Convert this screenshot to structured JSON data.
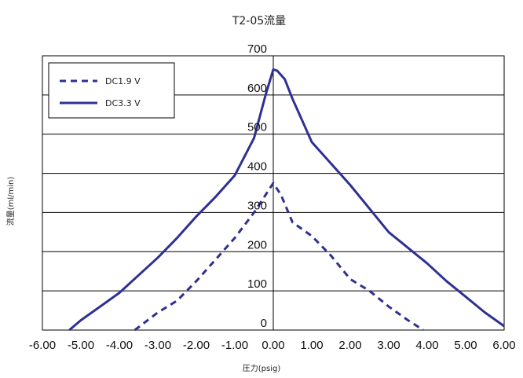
{
  "chart_data": {
    "type": "line",
    "title": "T2-05流量",
    "xlabel": "圧力(psig)",
    "ylabel": "流量(ml/min)",
    "xlim": [
      -6,
      6
    ],
    "ylim": [
      0,
      700
    ],
    "x_ticks": [
      "-6.00",
      "-5.00",
      "-4.00",
      "-3.00",
      "-2.00",
      "-1.00",
      "0.00",
      "1.00",
      "2.00",
      "3.00",
      "4.00",
      "5.00",
      "6.00"
    ],
    "y_ticks": [
      "0",
      "100",
      "200",
      "300",
      "400",
      "500",
      "600",
      "700"
    ],
    "grid": "horizontal",
    "legend_position": "top-left",
    "series": [
      {
        "name": "DC1.9 V",
        "style": "dashed",
        "color": "#2e3192",
        "x": [
          -3.6,
          -3.0,
          -2.5,
          -2.0,
          -1.5,
          -1.0,
          -0.5,
          -0.2,
          0.0,
          0.2,
          0.5,
          1.0,
          1.5,
          2.0,
          2.5,
          3.0,
          3.5,
          3.9
        ],
        "y": [
          0,
          45,
          75,
          125,
          180,
          235,
          300,
          345,
          375,
          345,
          275,
          240,
          190,
          130,
          100,
          60,
          25,
          0
        ]
      },
      {
        "name": "DC3.3 V",
        "style": "solid",
        "color": "#2e3192",
        "x": [
          -5.3,
          -5.0,
          -4.5,
          -4.0,
          -3.5,
          -3.0,
          -2.5,
          -2.0,
          -1.5,
          -1.0,
          -0.5,
          -0.2,
          0.0,
          0.1,
          0.3,
          0.5,
          1.0,
          1.5,
          2.0,
          2.5,
          3.0,
          3.5,
          4.0,
          4.5,
          5.0,
          5.5,
          6.0
        ],
        "y": [
          0,
          25,
          60,
          95,
          140,
          185,
          235,
          290,
          340,
          395,
          490,
          600,
          665,
          662,
          640,
          590,
          480,
          425,
          370,
          310,
          250,
          210,
          170,
          125,
          85,
          45,
          10
        ]
      }
    ]
  }
}
